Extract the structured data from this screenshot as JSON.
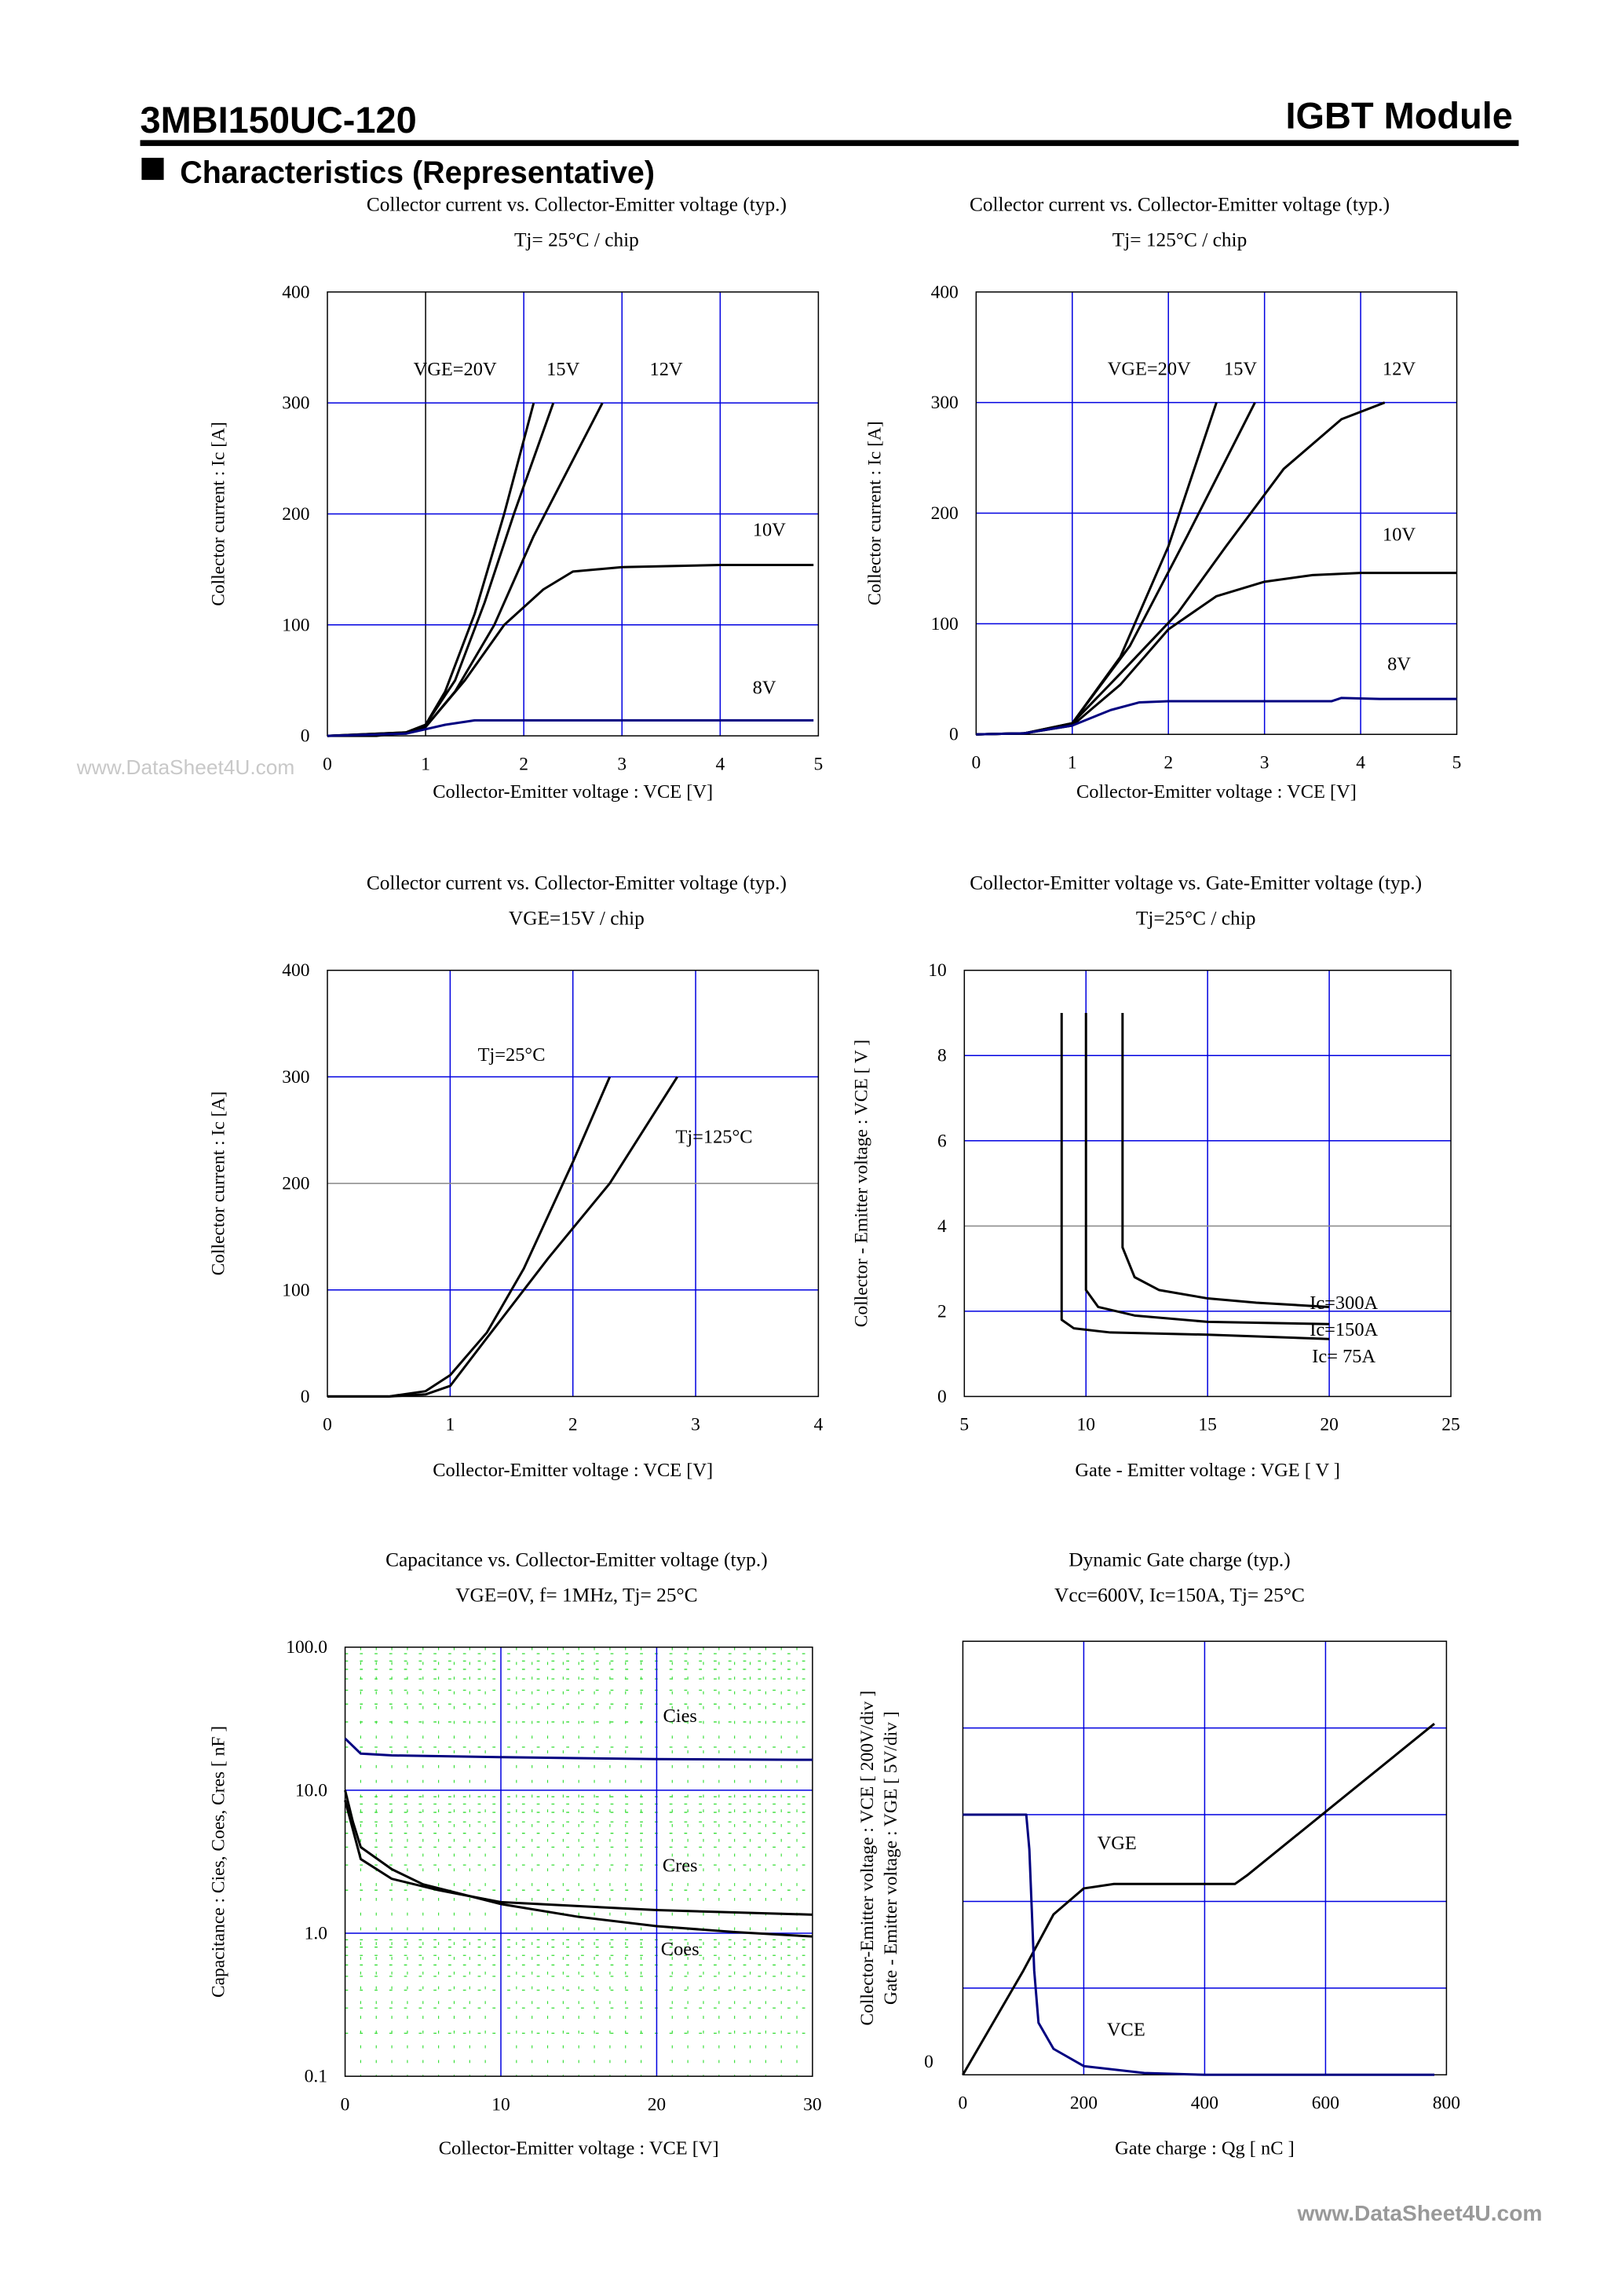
{
  "header": {
    "part_number": "3MBI150UC-120",
    "product_type": "IGBT Module",
    "section_title": "Characteristics (Representative)"
  },
  "watermarks": [
    "www.DataSheet4U.com",
    "www.DataSheet4U.com"
  ],
  "chart_data": [
    {
      "type": "line",
      "title": [
        "Collector current vs. Collector-Emitter voltage (typ.)",
        "Tj= 25°C / chip"
      ],
      "xlabel": "Collector-Emitter voltage : VCE [V]",
      "ylabel": [
        "Collector current : Ic [A]"
      ],
      "xlim": [
        0,
        5
      ],
      "ylim": [
        0,
        400
      ],
      "log_y": false,
      "xticks": [
        "0",
        "1",
        "2",
        "3",
        "4",
        "5"
      ],
      "yticks": [
        "0",
        "100",
        "200",
        "300",
        "400"
      ],
      "grid": true,
      "series": [
        {
          "name": "VGE=20V",
          "color": "#000000",
          "label_at": [
            1.3,
            325
          ],
          "points": [
            [
              0,
              0
            ],
            [
              0.5,
              0
            ],
            [
              0.8,
              3
            ],
            [
              1,
              10
            ],
            [
              1.2,
              40
            ],
            [
              1.5,
              110
            ],
            [
              1.8,
              200
            ],
            [
              2.1,
              300
            ]
          ]
        },
        {
          "name": "15V",
          "color": "#000000",
          "label_at": [
            2.4,
            325
          ],
          "points": [
            [
              0,
              0
            ],
            [
              0.8,
              3
            ],
            [
              1,
              10
            ],
            [
              1.3,
              50
            ],
            [
              1.6,
              120
            ],
            [
              1.9,
              200
            ],
            [
              2.3,
              300
            ]
          ]
        },
        {
          "name": "12V",
          "color": "#000000",
          "label_at": [
            3.45,
            325
          ],
          "points": [
            [
              0,
              0
            ],
            [
              0.8,
              3
            ],
            [
              1,
              8
            ],
            [
              1.3,
              40
            ],
            [
              1.7,
              100
            ],
            [
              2.1,
              180
            ],
            [
              2.8,
              300
            ]
          ]
        },
        {
          "name": "10V",
          "color": "#000000",
          "label_at": [
            4.5,
            180
          ],
          "points": [
            [
              0,
              0
            ],
            [
              0.8,
              2
            ],
            [
              1,
              8
            ],
            [
              1.4,
              50
            ],
            [
              1.8,
              100
            ],
            [
              2.2,
              132
            ],
            [
              2.5,
              148
            ],
            [
              3,
              152
            ],
            [
              4,
              154
            ],
            [
              4.95,
              154
            ]
          ]
        },
        {
          "name": "8V",
          "color": "#000080",
          "label_at": [
            4.45,
            38
          ],
          "points": [
            [
              0,
              0
            ],
            [
              0.8,
              2
            ],
            [
              1,
              6
            ],
            [
              1.2,
              10
            ],
            [
              1.5,
              14
            ],
            [
              4.95,
              14
            ]
          ]
        }
      ]
    },
    {
      "type": "line",
      "title": [
        "Collector current vs. Collector-Emitter voltage (typ.)",
        "Tj= 125°C / chip"
      ],
      "xlabel": "Collector-Emitter voltage : VCE [V]",
      "ylabel": [
        "Collector current : Ic [A]"
      ],
      "xlim": [
        0,
        5
      ],
      "ylim": [
        0,
        400
      ],
      "log_y": false,
      "xticks": [
        "0",
        "1",
        "2",
        "3",
        "4",
        "5"
      ],
      "yticks": [
        "0",
        "100",
        "200",
        "300",
        "400"
      ],
      "grid": true,
      "series": [
        {
          "name": "VGE=20V",
          "color": "#000000",
          "label_at": [
            1.8,
            325
          ],
          "points": [
            [
              0,
              0
            ],
            [
              0.5,
              1
            ],
            [
              1,
              10
            ],
            [
              1.5,
              70
            ],
            [
              2,
              170
            ],
            [
              2.5,
              300
            ]
          ]
        },
        {
          "name": "15V",
          "color": "#000000",
          "label_at": [
            2.75,
            325
          ],
          "points": [
            [
              0,
              0
            ],
            [
              0.5,
              1
            ],
            [
              1,
              10
            ],
            [
              1.6,
              80
            ],
            [
              2.2,
              180
            ],
            [
              2.9,
              300
            ]
          ]
        },
        {
          "name": "12V",
          "color": "#000000",
          "label_at": [
            4.4,
            325
          ],
          "points": [
            [
              0,
              0
            ],
            [
              0.5,
              1
            ],
            [
              1,
              10
            ],
            [
              1.5,
              55
            ],
            [
              2.1,
              110
            ],
            [
              2.6,
              170
            ],
            [
              3.2,
              240
            ],
            [
              3.8,
              285
            ],
            [
              4.25,
              300
            ]
          ]
        },
        {
          "name": "10V",
          "color": "#000000",
          "label_at": [
            4.4,
            175
          ],
          "points": [
            [
              0,
              0
            ],
            [
              0.5,
              1
            ],
            [
              1,
              8
            ],
            [
              1.5,
              45
            ],
            [
              2,
              95
            ],
            [
              2.5,
              125
            ],
            [
              3,
              138
            ],
            [
              3.5,
              144
            ],
            [
              4,
              146
            ],
            [
              5,
              146
            ]
          ]
        },
        {
          "name": "8V",
          "color": "#000080",
          "label_at": [
            4.4,
            58
          ],
          "points": [
            [
              0,
              0
            ],
            [
              0.5,
              1
            ],
            [
              1,
              8
            ],
            [
              1.4,
              22
            ],
            [
              1.7,
              29
            ],
            [
              2,
              30
            ],
            [
              3.7,
              30
            ],
            [
              3.8,
              33
            ],
            [
              4.2,
              32
            ],
            [
              5,
              32
            ]
          ]
        }
      ]
    },
    {
      "type": "line",
      "title": [
        "Collector current vs. Collector-Emitter voltage (typ.)",
        "VGE=15V / chip"
      ],
      "xlabel": "Collector-Emitter voltage : VCE [V]",
      "ylabel": [
        "Collector current : Ic [A]"
      ],
      "xlim": [
        0,
        4
      ],
      "ylim": [
        0,
        400
      ],
      "log_y": false,
      "xticks": [
        "0",
        "1",
        "2",
        "3",
        "4"
      ],
      "yticks": [
        "0",
        "100",
        "200",
        "300",
        "400"
      ],
      "grid": true,
      "series": [
        {
          "name": "Tj=25°C",
          "color": "#000000",
          "label_at": [
            1.5,
            315
          ],
          "points": [
            [
              0,
              0
            ],
            [
              0.5,
              0
            ],
            [
              0.8,
              5
            ],
            [
              1,
              20
            ],
            [
              1.3,
              60
            ],
            [
              1.6,
              120
            ],
            [
              2,
              220
            ],
            [
              2.3,
              300
            ]
          ]
        },
        {
          "name": "Tj=125°C",
          "color": "#000000",
          "label_at": [
            3.15,
            238
          ],
          "points": [
            [
              0,
              0
            ],
            [
              0.5,
              0
            ],
            [
              0.8,
              2
            ],
            [
              1,
              10
            ],
            [
              1.3,
              55
            ],
            [
              1.8,
              130
            ],
            [
              2.3,
              200
            ],
            [
              2.85,
              300
            ]
          ]
        }
      ]
    },
    {
      "type": "line",
      "title": [
        "Collector-Emitter voltage  vs. Gate-Emitter voltage (typ.)",
        "Tj=25°C / chip"
      ],
      "xlabel": "Gate - Emitter voltage  :  VGE  [ V ]",
      "ylabel": [
        "Collector - Emitter voltage  :  VCE  [ V ]"
      ],
      "xlim": [
        5,
        25
      ],
      "ylim": [
        0,
        10
      ],
      "log_y": false,
      "xticks": [
        "5",
        "10",
        "15",
        "20",
        "25"
      ],
      "yticks": [
        "0",
        "2",
        "4",
        "6",
        "8",
        "10"
      ],
      "grid": true,
      "series": [
        {
          "name": "Ic=300A",
          "color": "#000000",
          "label_at": [
            20.6,
            2.05
          ],
          "points": [
            [
              11.5,
              9
            ],
            [
              11.5,
              3.5
            ],
            [
              12,
              2.8
            ],
            [
              13,
              2.5
            ],
            [
              15,
              2.3
            ],
            [
              17,
              2.2
            ],
            [
              20,
              2.1
            ]
          ]
        },
        {
          "name": "Ic=150A",
          "color": "#000000",
          "label_at": [
            20.6,
            1.43
          ],
          "points": [
            [
              10,
              9
            ],
            [
              10,
              2.5
            ],
            [
              10.5,
              2.1
            ],
            [
              12,
              1.9
            ],
            [
              15,
              1.75
            ],
            [
              20,
              1.7
            ]
          ]
        },
        {
          "name": "Ic= 75A",
          "color": "#000000",
          "label_at": [
            20.6,
            0.8
          ],
          "points": [
            [
              9,
              9
            ],
            [
              9,
              1.8
            ],
            [
              9.5,
              1.6
            ],
            [
              11,
              1.5
            ],
            [
              15,
              1.45
            ],
            [
              20,
              1.35
            ]
          ]
        }
      ]
    },
    {
      "type": "line",
      "title": [
        "Capacitance  vs.  Collector-Emitter voltage  (typ.)",
        "VGE=0V,  f= 1MHz,  Tj= 25°C"
      ],
      "xlabel": "Collector-Emitter voltage : VCE [V]",
      "ylabel": [
        "Capacitance  :  Cies, Coes, Cres  [ nF ]"
      ],
      "xlim": [
        0,
        30
      ],
      "ylim": [
        0.1,
        100
      ],
      "log_y": true,
      "xticks": [
        "0",
        "10",
        "20",
        "30"
      ],
      "yticks": [
        "0.1",
        "1.0",
        "10.0",
        "100.0"
      ],
      "grid": true,
      "series": [
        {
          "name": "Cies",
          "color": "#000080",
          "label_at": [
            21.5,
            30
          ],
          "points": [
            [
              0,
              23
            ],
            [
              1,
              18
            ],
            [
              3,
              17.5
            ],
            [
              10,
              17
            ],
            [
              20,
              16.5
            ],
            [
              30,
              16.3
            ]
          ]
        },
        {
          "name": "Cres",
          "color": "#000000",
          "label_at": [
            21.5,
            2.7
          ],
          "points": [
            [
              0,
              10
            ],
            [
              0.5,
              6
            ],
            [
              1,
              4
            ],
            [
              3,
              2.8
            ],
            [
              5,
              2.2
            ],
            [
              10,
              1.6
            ],
            [
              15,
              1.3
            ],
            [
              20,
              1.12
            ],
            [
              25,
              1.02
            ],
            [
              30,
              0.95
            ]
          ]
        },
        {
          "name": "Coes",
          "color": "#000000",
          "label_at": [
            21.5,
            0.7
          ],
          "points": [
            [
              0,
              8.5
            ],
            [
              1,
              3.3
            ],
            [
              3,
              2.4
            ],
            [
              6,
              2
            ],
            [
              10,
              1.65
            ],
            [
              20,
              1.45
            ],
            [
              30,
              1.35
            ]
          ]
        }
      ]
    },
    {
      "type": "line",
      "title": [
        "Dynamic Gate charge  (typ.)",
        "Vcc=600V, Ic=150A, Tj= 25°C"
      ],
      "xlabel": "Gate charge  :  Qg  [ nC ]",
      "ylabel": [
        "Collector-Emitter voltage : VCE [ 200V/div ]",
        "Gate - Emitter voltage  :  VGE    [ 5V/div ]"
      ],
      "xlim": [
        0,
        800
      ],
      "ylim": [
        0,
        5
      ],
      "log_y": false,
      "xticks": [
        "0",
        "200",
        "400",
        "600",
        "800"
      ],
      "yticks": [
        "0"
      ],
      "grid": true,
      "series": [
        {
          "name": "VGE",
          "color": "#000000",
          "label_at": [
            255,
            2.6
          ],
          "points": [
            [
              0,
              0
            ],
            [
              100,
              1.2
            ],
            [
              150,
              1.85
            ],
            [
              200,
              2.15
            ],
            [
              250,
              2.2
            ],
            [
              450,
              2.2
            ],
            [
              470,
              2.3
            ],
            [
              780,
              4.05
            ]
          ]
        },
        {
          "name": "VCE",
          "color": "#000080",
          "label_at": [
            270,
            0.45
          ],
          "points": [
            [
              0,
              3
            ],
            [
              105,
              3
            ],
            [
              110,
              2.6
            ],
            [
              118,
              1.2
            ],
            [
              125,
              0.6
            ],
            [
              150,
              0.3
            ],
            [
              200,
              0.1
            ],
            [
              300,
              0.02
            ],
            [
              400,
              0
            ],
            [
              780,
              0
            ]
          ]
        }
      ]
    }
  ]
}
